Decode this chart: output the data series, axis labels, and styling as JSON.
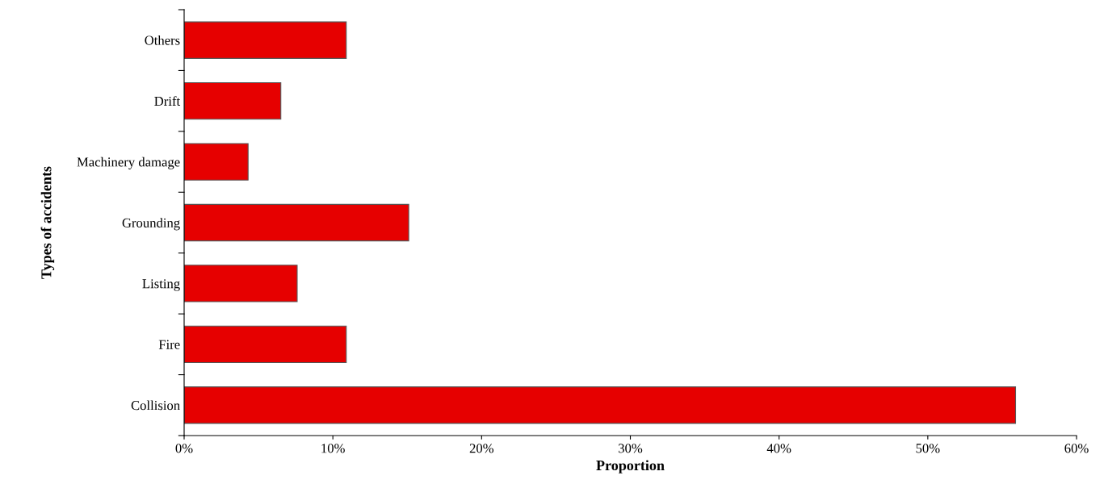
{
  "chart_data": {
    "type": "bar",
    "orientation": "horizontal",
    "xlabel": "Proportion",
    "ylabel": "Types of accidents",
    "categories": [
      "Others",
      "Drift",
      "Machinery damage",
      "Grounding",
      "Listing",
      "Fire",
      "Collision"
    ],
    "values": [
      10.9,
      6.5,
      4.3,
      15.1,
      7.6,
      10.9,
      55.9
    ],
    "color": "#e60000",
    "xlim": [
      0,
      60
    ],
    "xticks": [
      {
        "value": 0,
        "label": "0%"
      },
      {
        "value": 10,
        "label": "10%"
      },
      {
        "value": 20,
        "label": "20%"
      },
      {
        "value": 30,
        "label": "30%"
      },
      {
        "value": 40,
        "label": "40%"
      },
      {
        "value": 50,
        "label": "50%"
      },
      {
        "value": 60,
        "label": "60%"
      }
    ],
    "grid": false,
    "legend": false
  }
}
